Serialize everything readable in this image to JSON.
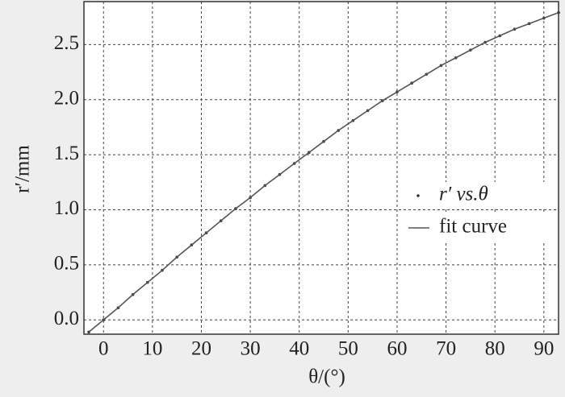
{
  "chart_data": {
    "type": "line",
    "x_label": "θ/(°)",
    "y_label": "r′/mm",
    "x": [
      -3,
      0,
      3,
      6,
      9,
      12,
      15,
      18,
      21,
      24,
      27,
      30,
      33,
      36,
      39,
      42,
      45,
      48,
      51,
      54,
      57,
      60,
      63,
      66,
      69,
      72,
      75,
      78,
      81,
      84,
      87,
      90,
      93
    ],
    "series": [
      {
        "name": "r′ vs.θ",
        "style": "dots",
        "color": "#333333",
        "values": [
          -0.11,
          0,
          0.11,
          0.23,
          0.34,
          0.45,
          0.57,
          0.68,
          0.79,
          0.9,
          1.01,
          1.11,
          1.22,
          1.32,
          1.42,
          1.52,
          1.62,
          1.72,
          1.81,
          1.9,
          1.99,
          2.07,
          2.15,
          2.23,
          2.31,
          2.38,
          2.45,
          2.52,
          2.58,
          2.64,
          2.69,
          2.74,
          2.79
        ]
      },
      {
        "name": "fit curve",
        "style": "line",
        "color": "#555555",
        "values": [
          -0.11,
          0,
          0.11,
          0.23,
          0.34,
          0.45,
          0.57,
          0.68,
          0.79,
          0.9,
          1.01,
          1.11,
          1.22,
          1.32,
          1.42,
          1.52,
          1.62,
          1.72,
          1.81,
          1.9,
          1.99,
          2.07,
          2.15,
          2.23,
          2.31,
          2.38,
          2.45,
          2.52,
          2.58,
          2.64,
          2.69,
          2.74,
          2.79
        ]
      }
    ],
    "xlim": [
      -4,
      93
    ],
    "ylim": [
      -0.13,
      2.89
    ],
    "xticks": [
      0,
      10,
      20,
      30,
      40,
      50,
      60,
      70,
      80,
      90
    ],
    "yticks": [
      {
        "value": 0,
        "label": "0.0"
      },
      0.5,
      {
        "value": 1,
        "label": "1.0"
      },
      1.5,
      {
        "value": 2,
        "label": "2.0"
      },
      2.5
    ],
    "grid": true,
    "legend": "right"
  }
}
